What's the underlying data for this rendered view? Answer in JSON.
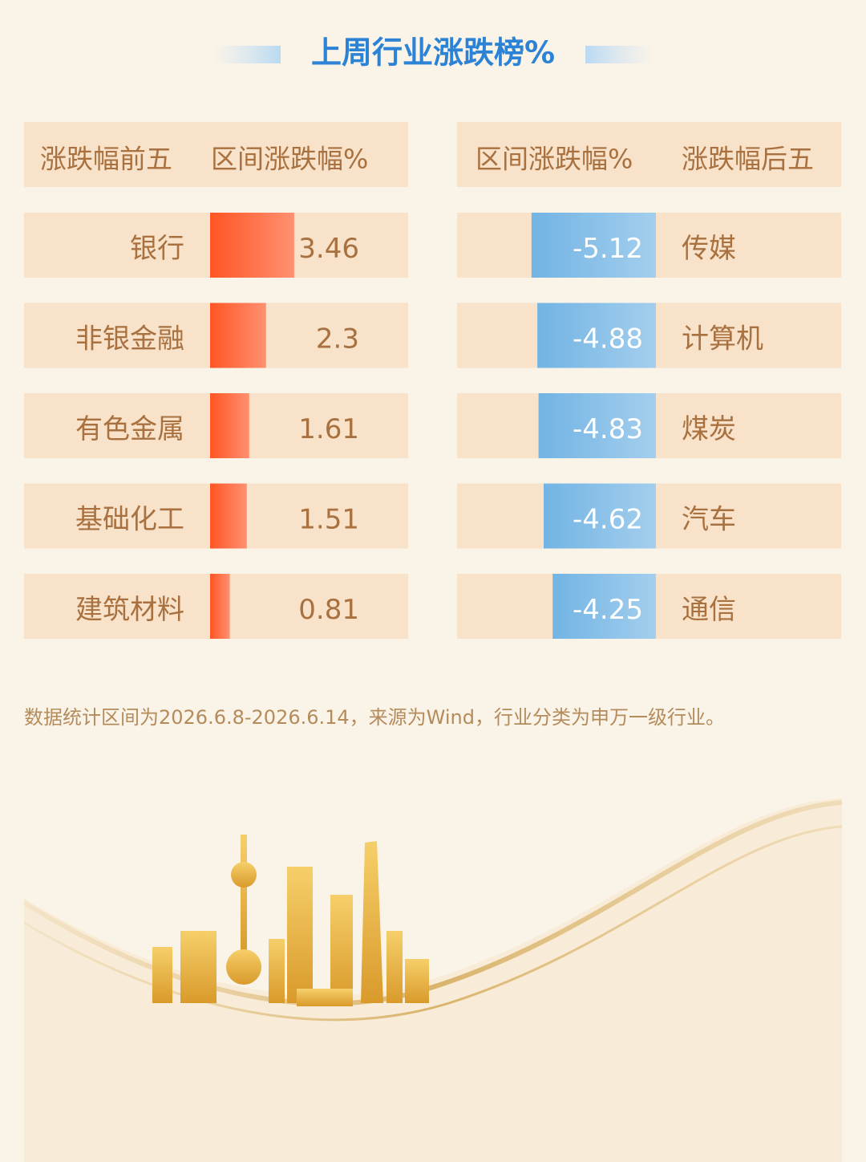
{
  "title": "上周行业涨跌榜%",
  "note": "数据统计区间为2026.6.8-2026.6.14，来源为Wind，行业分类为申万一级行业。",
  "chart_data": [
    {
      "type": "bar",
      "category_header": "涨跌幅前五",
      "value_header": "区间涨跌幅%",
      "categories": [
        "银行",
        "非银金融",
        "有色金属",
        "基础化工",
        "建筑材料"
      ],
      "values": [
        3.46,
        2.3,
        1.61,
        1.51,
        0.81
      ],
      "color": "#ff5524"
    },
    {
      "type": "bar",
      "category_header": "涨跌幅后五",
      "value_header": "区间涨跌幅%",
      "categories": [
        "传媒",
        "计算机",
        "煤炭",
        "汽车",
        "通信"
      ],
      "values": [
        -5.12,
        -4.88,
        -4.83,
        -4.62,
        -4.25
      ],
      "color": "#72b4e4"
    }
  ]
}
